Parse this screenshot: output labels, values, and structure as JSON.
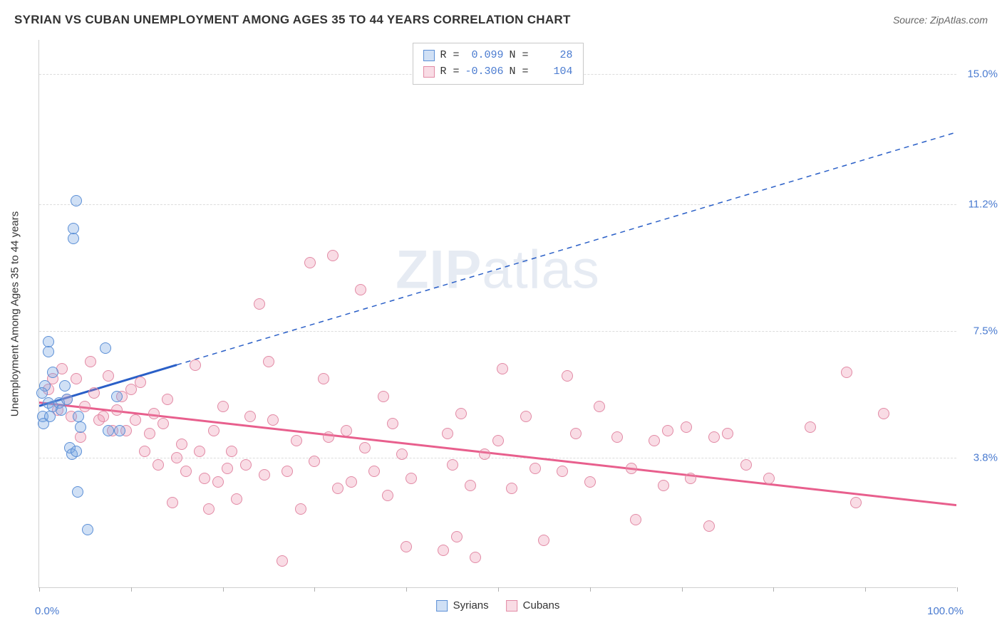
{
  "title": "SYRIAN VS CUBAN UNEMPLOYMENT AMONG AGES 35 TO 44 YEARS CORRELATION CHART",
  "source": "Source: ZipAtlas.com",
  "watermark_a": "ZIP",
  "watermark_b": "atlas",
  "y_axis_label": "Unemployment Among Ages 35 to 44 years",
  "chart": {
    "type": "scatter",
    "xlim": [
      0,
      100
    ],
    "ylim": [
      0,
      16
    ],
    "x_min_label": "0.0%",
    "x_max_label": "100.0%",
    "x_ticks": [
      0,
      10,
      20,
      30,
      40,
      50,
      60,
      70,
      80,
      90,
      100
    ],
    "y_ticks": [
      {
        "v": 3.8,
        "label": "3.8%"
      },
      {
        "v": 7.5,
        "label": "7.5%"
      },
      {
        "v": 11.2,
        "label": "11.2%"
      },
      {
        "v": 15.0,
        "label": "15.0%"
      }
    ],
    "grid_color": "#dcdcdc",
    "background_color": "#ffffff",
    "point_radius": 8
  },
  "series": {
    "syrians": {
      "label": "Syrians",
      "fill": "rgba(120,165,225,0.35)",
      "stroke": "#5b8fd6",
      "reg_color": "#2a5fc7",
      "R": "0.099",
      "N": "28",
      "solid_xmax": 15,
      "regression": {
        "y_at_x0": 5.3,
        "y_at_x100": 13.3
      },
      "points": [
        [
          1,
          7.2
        ],
        [
          1,
          6.9
        ],
        [
          1.5,
          6.3
        ],
        [
          0.6,
          5.9
        ],
        [
          1,
          5.4
        ],
        [
          1.5,
          5.3
        ],
        [
          0.3,
          5.7
        ],
        [
          0.4,
          5.0
        ],
        [
          0.5,
          4.8
        ],
        [
          1.2,
          5.0
        ],
        [
          2.2,
          5.4
        ],
        [
          2.4,
          5.2
        ],
        [
          2.8,
          5.9
        ],
        [
          3.0,
          5.5
        ],
        [
          4.3,
          5.0
        ],
        [
          4.5,
          4.7
        ],
        [
          7.2,
          7.0
        ],
        [
          7.5,
          4.6
        ],
        [
          8.5,
          5.6
        ],
        [
          8.8,
          4.6
        ],
        [
          4.0,
          11.3
        ],
        [
          3.7,
          10.2
        ],
        [
          3.7,
          10.5
        ],
        [
          3.3,
          4.1
        ],
        [
          3.6,
          3.9
        ],
        [
          4.0,
          4.0
        ],
        [
          4.2,
          2.8
        ],
        [
          5.3,
          1.7
        ]
      ]
    },
    "cubans": {
      "label": "Cubans",
      "fill": "rgba(235,140,170,0.30)",
      "stroke": "#e28aa5",
      "reg_color": "#e85f8d",
      "R": "-0.306",
      "N": "104",
      "solid_xmax": 100,
      "regression": {
        "y_at_x0": 5.4,
        "y_at_x100": 2.4
      },
      "points": [
        [
          1,
          5.8
        ],
        [
          1.5,
          6.1
        ],
        [
          2,
          5.2
        ],
        [
          2.5,
          6.4
        ],
        [
          3,
          5.5
        ],
        [
          3.5,
          5.0
        ],
        [
          4,
          6.1
        ],
        [
          4.5,
          4.4
        ],
        [
          5,
          5.3
        ],
        [
          5.6,
          6.6
        ],
        [
          6,
          5.7
        ],
        [
          6.5,
          4.9
        ],
        [
          7,
          5.0
        ],
        [
          7.5,
          6.2
        ],
        [
          8,
          4.6
        ],
        [
          8.5,
          5.2
        ],
        [
          9,
          5.6
        ],
        [
          9.5,
          4.6
        ],
        [
          10,
          5.8
        ],
        [
          10.5,
          4.9
        ],
        [
          11,
          6.0
        ],
        [
          11.5,
          4.0
        ],
        [
          12,
          4.5
        ],
        [
          12.5,
          5.1
        ],
        [
          13,
          3.6
        ],
        [
          13.5,
          4.8
        ],
        [
          14,
          5.5
        ],
        [
          14.5,
          2.5
        ],
        [
          15,
          3.8
        ],
        [
          15.5,
          4.2
        ],
        [
          16,
          3.4
        ],
        [
          17,
          6.5
        ],
        [
          17.5,
          4.0
        ],
        [
          18,
          3.2
        ],
        [
          18.5,
          2.3
        ],
        [
          19,
          4.6
        ],
        [
          19.5,
          3.1
        ],
        [
          20,
          5.3
        ],
        [
          20.5,
          3.5
        ],
        [
          21,
          4.0
        ],
        [
          21.5,
          2.6
        ],
        [
          22.5,
          3.6
        ],
        [
          23,
          5.0
        ],
        [
          24,
          8.3
        ],
        [
          24.5,
          3.3
        ],
        [
          25,
          6.6
        ],
        [
          25.5,
          4.9
        ],
        [
          26.5,
          0.8
        ],
        [
          27,
          3.4
        ],
        [
          28,
          4.3
        ],
        [
          28.5,
          2.3
        ],
        [
          29.5,
          9.5
        ],
        [
          30,
          3.7
        ],
        [
          31,
          6.1
        ],
        [
          31.5,
          4.4
        ],
        [
          32,
          9.7
        ],
        [
          32.5,
          2.9
        ],
        [
          33.5,
          4.6
        ],
        [
          34,
          3.1
        ],
        [
          35,
          8.7
        ],
        [
          35.5,
          4.1
        ],
        [
          36.5,
          3.4
        ],
        [
          37.5,
          5.6
        ],
        [
          38,
          2.7
        ],
        [
          38.5,
          4.8
        ],
        [
          39.5,
          3.9
        ],
        [
          40,
          1.2
        ],
        [
          40.5,
          3.2
        ],
        [
          44,
          1.1
        ],
        [
          44.5,
          4.5
        ],
        [
          45,
          3.6
        ],
        [
          45.5,
          1.5
        ],
        [
          46,
          5.1
        ],
        [
          47,
          3.0
        ],
        [
          47.5,
          0.9
        ],
        [
          48.5,
          3.9
        ],
        [
          50,
          4.3
        ],
        [
          50.5,
          6.4
        ],
        [
          51.5,
          2.9
        ],
        [
          53,
          5.0
        ],
        [
          54,
          3.5
        ],
        [
          55,
          1.4
        ],
        [
          57,
          3.4
        ],
        [
          57.5,
          6.2
        ],
        [
          58.5,
          4.5
        ],
        [
          60,
          3.1
        ],
        [
          61,
          5.3
        ],
        [
          63,
          4.4
        ],
        [
          64.5,
          3.5
        ],
        [
          65,
          2.0
        ],
        [
          67,
          4.3
        ],
        [
          68,
          3.0
        ],
        [
          68.5,
          4.6
        ],
        [
          70.5,
          4.7
        ],
        [
          71,
          3.2
        ],
        [
          73,
          1.8
        ],
        [
          73.5,
          4.4
        ],
        [
          75,
          4.5
        ],
        [
          77,
          3.6
        ],
        [
          79.5,
          3.2
        ],
        [
          84,
          4.7
        ],
        [
          88,
          6.3
        ],
        [
          89,
          2.5
        ],
        [
          92,
          5.1
        ]
      ]
    }
  },
  "legend": {
    "r_label": "R =",
    "n_label": "N ="
  }
}
